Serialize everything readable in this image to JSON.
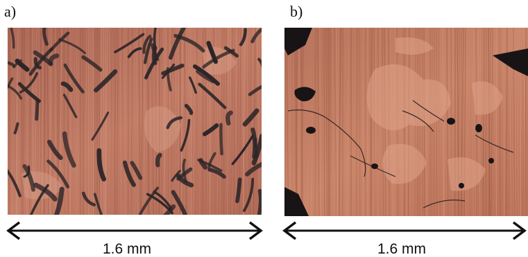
{
  "panels": [
    {
      "label": "a)",
      "scale_text": "1.6 mm"
    },
    {
      "label": "b)",
      "scale_text": "1.6 mm"
    }
  ],
  "colors": {
    "matrix": "#b86f5a",
    "matrix_light": "#d18f78",
    "phase_dark": "#2c2528",
    "arrow": "#111111"
  }
}
